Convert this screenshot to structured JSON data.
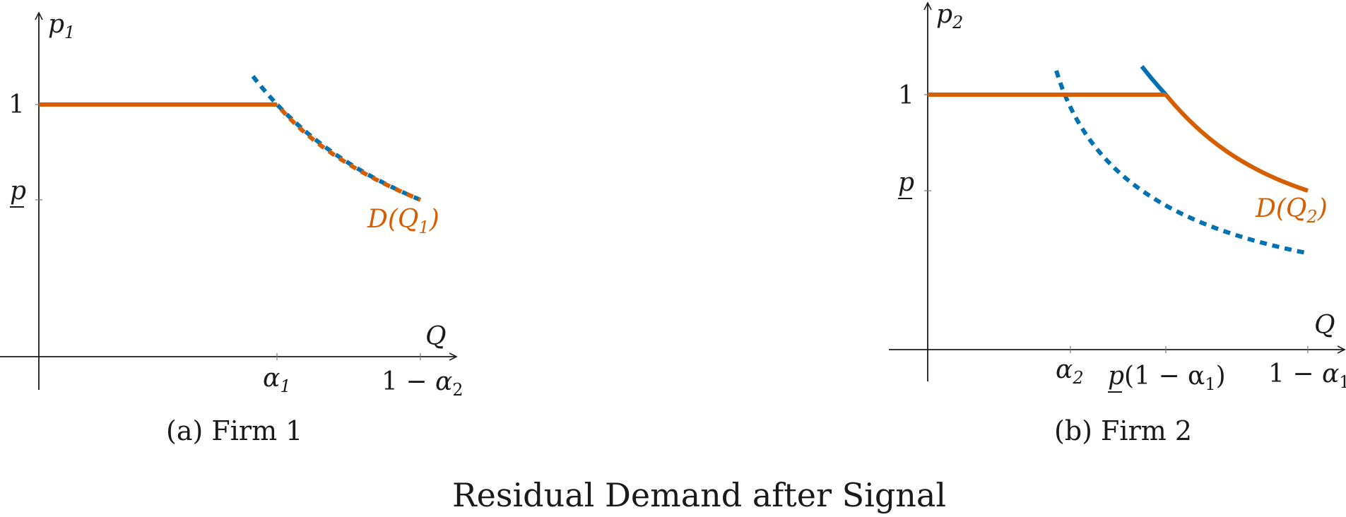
{
  "title": "Residual Demand after Signal",
  "colors": {
    "orange": "#d55e00",
    "blue": "#0072b2",
    "axis": "#1a1a1a"
  },
  "panels": [
    {
      "caption": "(a) Firm 1",
      "y_axis_label": "p",
      "y_axis_sub": "1",
      "x_axis_label": "Q",
      "y_ticks": [
        "1",
        "p"
      ],
      "x_ticks": [
        {
          "main": "α",
          "sub": "1",
          "prefix": ""
        },
        {
          "main": "α",
          "sub": "2",
          "prefix": "1 − "
        }
      ],
      "demand_label": "D(Q",
      "demand_sub": "1",
      "demand_close": ")"
    },
    {
      "caption": "(b) Firm 2",
      "y_axis_label": "p",
      "y_axis_sub": "2",
      "x_axis_label": "Q",
      "y_ticks": [
        "1",
        "p"
      ],
      "x_ticks": [
        {
          "main": "α",
          "sub": "2",
          "prefix": ""
        },
        {
          "main": "p",
          "sub": "",
          "prefix": "",
          "suffix": "(1 − α",
          "suffix_sub": "1",
          "close": ")"
        },
        {
          "main": "α",
          "sub": "1",
          "prefix": "1 − "
        }
      ],
      "demand_label": "D(Q",
      "demand_sub": "2",
      "demand_close": ")"
    }
  ]
}
